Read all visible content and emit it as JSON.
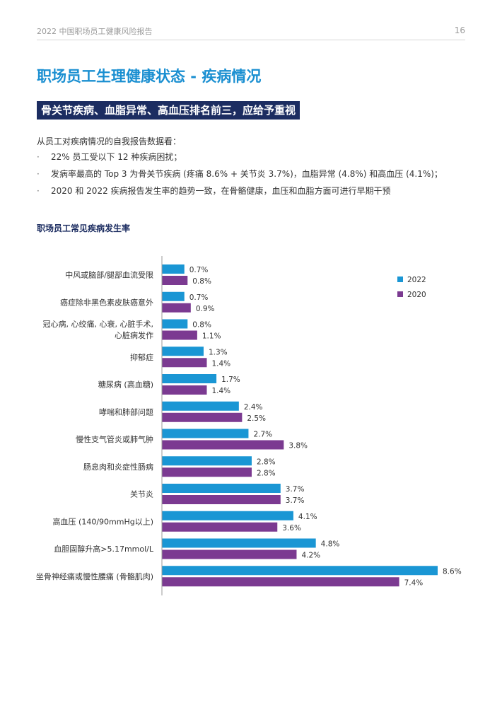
{
  "header": {
    "report_title": "2022 中国职场员工健康风险报告",
    "page_number": "16"
  },
  "page_title": "职场员工生理健康状态 - 疾病情况",
  "subtitle": "骨关节疾病、血脂异常、高血压排名前三，应给予重视",
  "intro": "从员工对疾病情况的自我报告数据看：",
  "bullets": [
    "22% 员工受以下 12 种疾病困扰；",
    "发病率最高的 Top 3 为骨关节疾病 (疼痛 8.6% + 关节炎 3.7%)，血脂异常 (4.8%) 和高血压 (4.1%)；",
    "2020 和 2022 疾病报告发生率的趋势一致，在骨骼健康，血压和血脂方面可进行早期干预"
  ],
  "bullet_marker": "·",
  "chart_title": "职场员工常见疾病发生率",
  "chart_data": {
    "type": "bar",
    "orientation": "horizontal",
    "title": "职场员工常见疾病发生率",
    "categories": [
      [
        "中风或脑部/腿部血流受限"
      ],
      [
        "癌症除非黑色素皮肤癌意外"
      ],
      [
        "冠心病, 心绞痛, 心衰, 心脏手术,",
        "心脏病发作"
      ],
      [
        "抑郁症"
      ],
      [
        "糖尿病 (高血糖)"
      ],
      [
        "哮喘和肺部问题"
      ],
      [
        "慢性支气管炎或肺气肿"
      ],
      [
        "肠息肉和炎症性肠病"
      ],
      [
        "关节炎"
      ],
      [
        "高血压 (140/90mmHg以上)"
      ],
      [
        "血胆固醇升高>5.17mmol/L"
      ],
      [
        "坐骨神经痛或慢性腰痛 (骨骼肌肉)"
      ]
    ],
    "series": [
      {
        "name": "2022",
        "color": "#1a96d4",
        "values": [
          0.7,
          0.7,
          0.8,
          1.3,
          1.7,
          2.4,
          2.7,
          2.8,
          3.7,
          4.1,
          4.8,
          8.6
        ],
        "labels": [
          "0.7%",
          "0.7%",
          "0.8%",
          "1.3%",
          "1.7%",
          "2.4%",
          "2.7%",
          "2.8%",
          "3.7%",
          "4.1%",
          "4.8%",
          "8.6%"
        ]
      },
      {
        "name": "2020",
        "color": "#7b3a91",
        "values": [
          0.8,
          0.9,
          1.1,
          1.4,
          1.4,
          2.5,
          3.8,
          2.8,
          3.7,
          3.6,
          4.2,
          7.4
        ],
        "labels": [
          "0.8%",
          "0.9%",
          "1.1%",
          "1.4%",
          "1.4%",
          "2.5%",
          "3.8%",
          "2.8%",
          "3.7%",
          "3.6%",
          "4.2%",
          "7.4%"
        ]
      }
    ],
    "unit": "%",
    "xlim": [
      0,
      8.6
    ],
    "legend_position": "top-right",
    "grid": false
  }
}
